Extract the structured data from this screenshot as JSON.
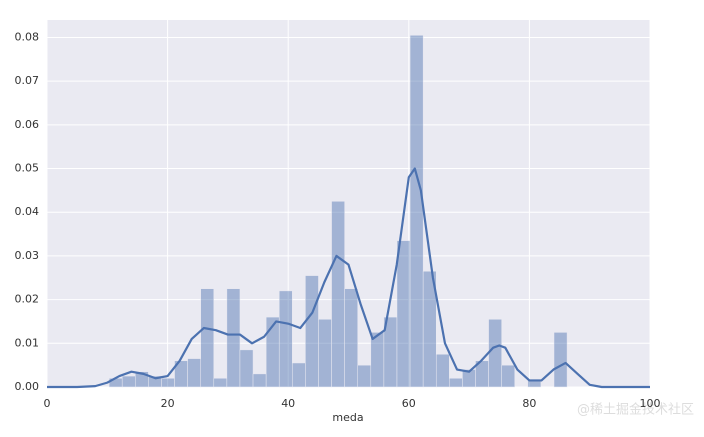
{
  "chart_data": {
    "type": "histogram",
    "xlabel": "meda",
    "watermark": "@稀土掘金技术社区",
    "color": "#4c72b0",
    "grid": true,
    "bins": [
      10.3,
      12.47,
      14.64,
      16.81,
      18.98,
      21.15,
      23.32,
      25.49,
      27.66,
      29.83,
      32.0,
      34.17,
      36.34,
      38.51,
      40.68,
      42.85,
      45.02,
      47.19,
      49.36,
      51.53,
      53.7,
      55.87,
      58.04,
      60.21,
      62.38,
      64.55,
      66.72,
      68.89,
      71.06,
      73.23,
      75.4,
      77.57,
      79.74,
      81.91,
      84.08,
      86.25
    ],
    "values": [
      0.002,
      0.0025,
      0.0035,
      0.0025,
      0.002,
      0.006,
      0.0065,
      0.0225,
      0.002,
      0.0225,
      0.0085,
      0.003,
      0.016,
      0.022,
      0.0055,
      0.0255,
      0.0155,
      0.0425,
      0.0225,
      0.005,
      0.0125,
      0.016,
      0.0335,
      0.0805,
      0.0265,
      0.0075,
      0.002,
      0.004,
      0.006,
      0.0155,
      0.005,
      0,
      0.0015,
      0,
      0.0125
    ],
    "kde": {
      "x": [
        0,
        5,
        8,
        10,
        12,
        14,
        16,
        18,
        20,
        22,
        24,
        26,
        28,
        30,
        32,
        34,
        36,
        38,
        40,
        42,
        44,
        46,
        48,
        50,
        52,
        54,
        56,
        58,
        60,
        61,
        62,
        64,
        66,
        68,
        70,
        72,
        74,
        75,
        76,
        78,
        80,
        82,
        84,
        86,
        88,
        90,
        92,
        100
      ],
      "values": [
        0,
        0,
        0.0002,
        0.001,
        0.0025,
        0.0035,
        0.003,
        0.002,
        0.0025,
        0.006,
        0.011,
        0.0135,
        0.013,
        0.012,
        0.012,
        0.01,
        0.0115,
        0.015,
        0.0145,
        0.0135,
        0.017,
        0.024,
        0.03,
        0.028,
        0.019,
        0.011,
        0.013,
        0.028,
        0.048,
        0.05,
        0.045,
        0.025,
        0.01,
        0.004,
        0.0035,
        0.006,
        0.009,
        0.0095,
        0.009,
        0.004,
        0.0015,
        0.0015,
        0.004,
        0.0055,
        0.003,
        0.0005,
        0,
        0
      ]
    },
    "xlim": [
      0,
      100
    ],
    "xticks": [
      0,
      20,
      40,
      60,
      80,
      100
    ],
    "ylim": [
      0,
      0.084
    ],
    "yticks": [
      {
        "value": 0,
        "label": "0.00"
      },
      {
        "value": 0.01,
        "label": "0.01"
      },
      {
        "value": 0.02,
        "label": "0.02"
      },
      {
        "value": 0.03,
        "label": "0.03"
      },
      {
        "value": 0.04,
        "label": "0.04"
      },
      {
        "value": 0.05,
        "label": "0.05"
      },
      {
        "value": 0.06,
        "label": "0.06"
      },
      {
        "value": 0.07,
        "label": "0.07"
      },
      {
        "value": 0.08,
        "label": "0.08"
      }
    ]
  }
}
